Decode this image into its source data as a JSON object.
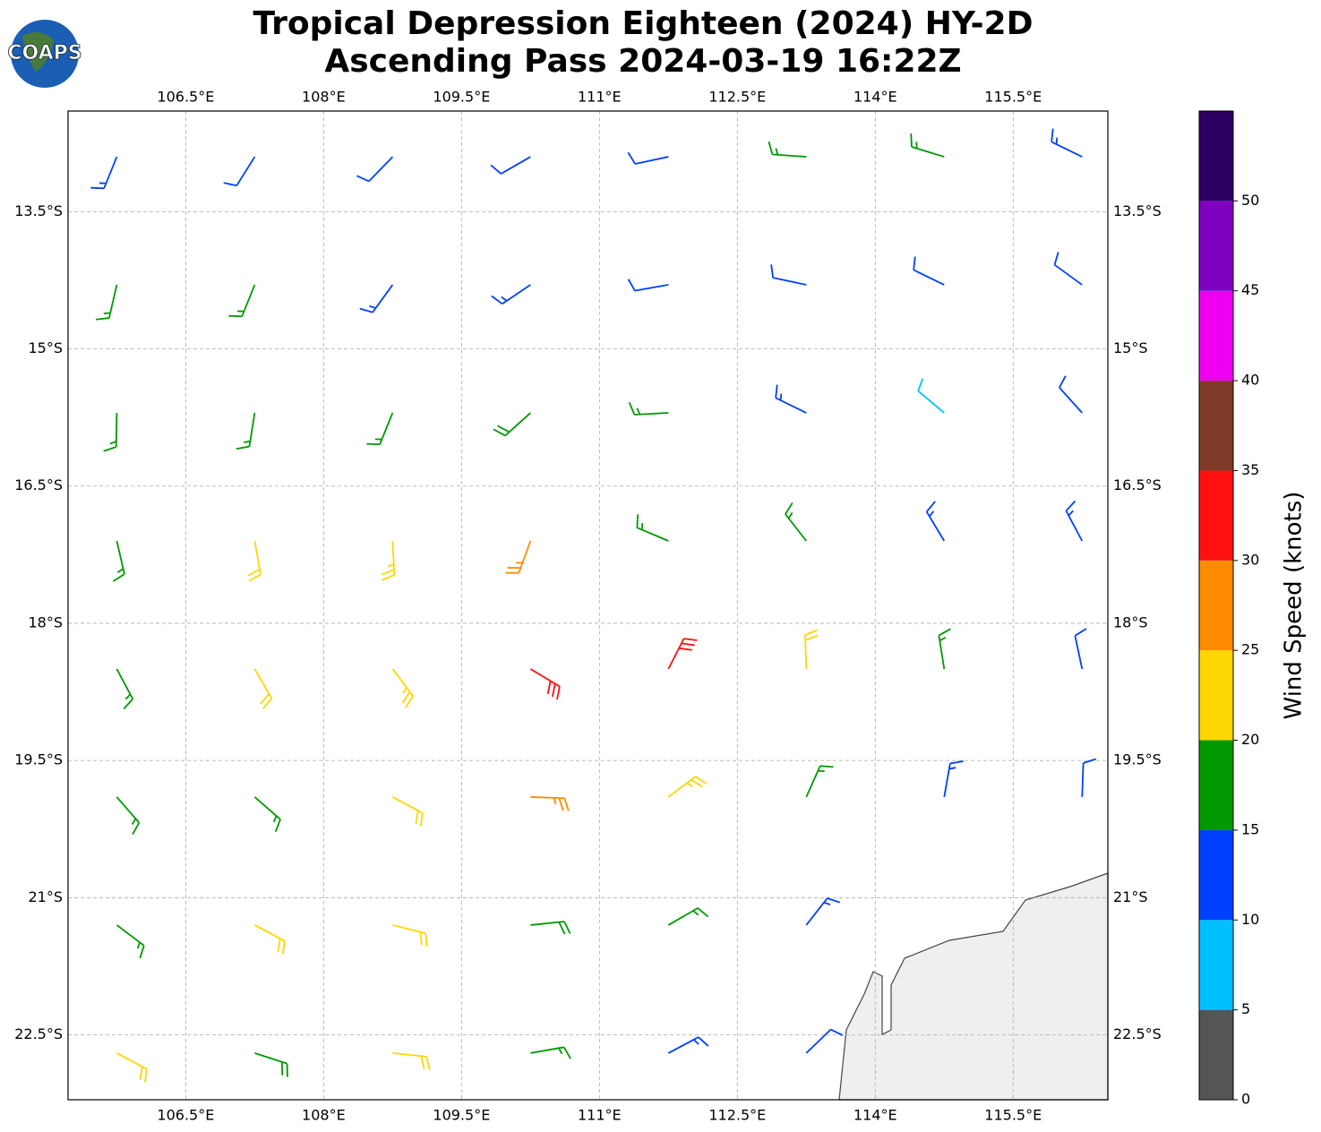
{
  "chart_data": {
    "type": "barbs",
    "title": "Tropical Depression Eighteen (2024) HY-2D",
    "subtitle": "Ascending Pass 2024-03-19 16:22Z",
    "logo": "COAPS",
    "xlim": [
      105.22,
      116.53
    ],
    "ylim": [
      -23.21,
      -12.4
    ],
    "xticks": [
      {
        "value": 106.5,
        "label": "106.5°E"
      },
      {
        "value": 108,
        "label": "108°E"
      },
      {
        "value": 109.5,
        "label": "109.5°E"
      },
      {
        "value": 111,
        "label": "111°E"
      },
      {
        "value": 112.5,
        "label": "112.5°E"
      },
      {
        "value": 114,
        "label": "114°E"
      },
      {
        "value": 115.5,
        "label": "115.5°E"
      }
    ],
    "yticks": [
      {
        "value": -13.5,
        "label": "13.5°S"
      },
      {
        "value": -15,
        "label": "15°S"
      },
      {
        "value": -16.5,
        "label": "16.5°S"
      },
      {
        "value": -18,
        "label": "18°S"
      },
      {
        "value": -19.5,
        "label": "19.5°S"
      },
      {
        "value": -21,
        "label": "21°S"
      },
      {
        "value": -22.5,
        "label": "22.5°S"
      }
    ],
    "grid": true,
    "colorbar": {
      "label": "Wind Speed (knots)",
      "bounds": [
        0,
        5,
        10,
        15,
        20,
        25,
        30,
        35,
        40,
        45,
        50,
        55
      ],
      "colors": [
        "#555555",
        "#00bfff",
        "#0040ff",
        "#009900",
        "#ffd700",
        "#ff8c00",
        "#ff1010",
        "#7f3b28",
        "#f000f0",
        "#8000c0",
        "#2a0060"
      ],
      "ticks": [
        0,
        5,
        10,
        15,
        20,
        25,
        30,
        35,
        40,
        45,
        50
      ]
    },
    "points": [
      {
        "lon": 105.75,
        "lat": -12.9,
        "speed": 13,
        "direction": 202
      },
      {
        "lon": 107.25,
        "lat": -12.9,
        "speed": 12,
        "direction": 212
      },
      {
        "lon": 108.75,
        "lat": -12.9,
        "speed": 12,
        "direction": 224
      },
      {
        "lon": 110.25,
        "lat": -12.9,
        "speed": 12,
        "direction": 240
      },
      {
        "lon": 111.75,
        "lat": -12.9,
        "speed": 11,
        "direction": 258
      },
      {
        "lon": 113.25,
        "lat": -12.9,
        "speed": 16,
        "direction": 274
      },
      {
        "lon": 114.75,
        "lat": -12.9,
        "speed": 16,
        "direction": 287
      },
      {
        "lon": 116.25,
        "lat": -12.9,
        "speed": 13,
        "direction": 296
      },
      {
        "lon": 105.75,
        "lat": -14.3,
        "speed": 17,
        "direction": 193
      },
      {
        "lon": 107.25,
        "lat": -14.3,
        "speed": 16,
        "direction": 202
      },
      {
        "lon": 108.75,
        "lat": -14.3,
        "speed": 13,
        "direction": 216
      },
      {
        "lon": 110.25,
        "lat": -14.3,
        "speed": 13,
        "direction": 236
      },
      {
        "lon": 111.75,
        "lat": -14.3,
        "speed": 12,
        "direction": 260
      },
      {
        "lon": 113.25,
        "lat": -14.3,
        "speed": 12,
        "direction": 282
      },
      {
        "lon": 114.75,
        "lat": -14.3,
        "speed": 12,
        "direction": 296
      },
      {
        "lon": 116.25,
        "lat": -14.3,
        "speed": 12,
        "direction": 306
      },
      {
        "lon": 105.75,
        "lat": -15.7,
        "speed": 17,
        "direction": 181
      },
      {
        "lon": 107.25,
        "lat": -15.7,
        "speed": 17,
        "direction": 189
      },
      {
        "lon": 108.75,
        "lat": -15.7,
        "speed": 17,
        "direction": 202
      },
      {
        "lon": 110.25,
        "lat": -15.7,
        "speed": 18,
        "direction": 228
      },
      {
        "lon": 111.75,
        "lat": -15.7,
        "speed": 17,
        "direction": 267
      },
      {
        "lon": 113.25,
        "lat": -15.7,
        "speed": 13,
        "direction": 296
      },
      {
        "lon": 114.75,
        "lat": -15.7,
        "speed": 8,
        "direction": 310
      },
      {
        "lon": 116.25,
        "lat": -15.7,
        "speed": 12,
        "direction": 318
      },
      {
        "lon": 105.75,
        "lat": -17.1,
        "speed": 17,
        "direction": 167
      },
      {
        "lon": 107.25,
        "lat": -17.1,
        "speed": 22,
        "direction": 170
      },
      {
        "lon": 108.75,
        "lat": -17.1,
        "speed": 23,
        "direction": 177
      },
      {
        "lon": 110.25,
        "lat": -17.1,
        "speed": 27,
        "direction": 200
      },
      {
        "lon": 111.75,
        "lat": -17.1,
        "speed": 16,
        "direction": 293
      },
      {
        "lon": 113.25,
        "lat": -17.1,
        "speed": 17,
        "direction": 322
      },
      {
        "lon": 114.75,
        "lat": -17.1,
        "speed": 14,
        "direction": 329
      },
      {
        "lon": 116.25,
        "lat": -17.1,
        "speed": 13,
        "direction": 332
      },
      {
        "lon": 105.75,
        "lat": -18.5,
        "speed": 16,
        "direction": 152
      },
      {
        "lon": 107.25,
        "lat": -18.5,
        "speed": 22,
        "direction": 150
      },
      {
        "lon": 108.75,
        "lat": -18.5,
        "speed": 24,
        "direction": 143
      },
      {
        "lon": 110.25,
        "lat": -18.5,
        "speed": 30,
        "direction": 121
      },
      {
        "lon": 111.75,
        "lat": -18.5,
        "speed": 32,
        "direction": 27
      },
      {
        "lon": 113.25,
        "lat": -18.5,
        "speed": 22,
        "direction": 358
      },
      {
        "lon": 114.75,
        "lat": -18.5,
        "speed": 17,
        "direction": 351
      },
      {
        "lon": 116.25,
        "lat": -18.5,
        "speed": 12,
        "direction": 348
      },
      {
        "lon": 105.75,
        "lat": -19.9,
        "speed": 17,
        "direction": 139
      },
      {
        "lon": 107.25,
        "lat": -19.9,
        "speed": 17,
        "direction": 131
      },
      {
        "lon": 108.75,
        "lat": -19.9,
        "speed": 22,
        "direction": 118
      },
      {
        "lon": 110.25,
        "lat": -19.9,
        "speed": 27,
        "direction": 92
      },
      {
        "lon": 111.75,
        "lat": -19.9,
        "speed": 24,
        "direction": 53
      },
      {
        "lon": 113.25,
        "lat": -19.9,
        "speed": 17,
        "direction": 24
      },
      {
        "lon": 114.75,
        "lat": -19.9,
        "speed": 13,
        "direction": 10
      },
      {
        "lon": 116.25,
        "lat": -19.9,
        "speed": 12,
        "direction": 2
      },
      {
        "lon": 105.75,
        "lat": -21.3,
        "speed": 17,
        "direction": 127
      },
      {
        "lon": 107.25,
        "lat": -21.3,
        "speed": 22,
        "direction": 118
      },
      {
        "lon": 108.75,
        "lat": -21.3,
        "speed": 22,
        "direction": 104
      },
      {
        "lon": 110.25,
        "lat": -21.3,
        "speed": 18,
        "direction": 84
      },
      {
        "lon": 111.75,
        "lat": -21.3,
        "speed": 17,
        "direction": 60
      },
      {
        "lon": 113.25,
        "lat": -21.3,
        "speed": 13,
        "direction": 38
      },
      {
        "lon": 105.75,
        "lat": -22.7,
        "speed": 22,
        "direction": 118
      },
      {
        "lon": 107.25,
        "lat": -22.7,
        "speed": 18,
        "direction": 108
      },
      {
        "lon": 108.75,
        "lat": -22.7,
        "speed": 22,
        "direction": 96
      },
      {
        "lon": 110.25,
        "lat": -22.7,
        "speed": 17,
        "direction": 80
      },
      {
        "lon": 111.75,
        "lat": -22.7,
        "speed": 13,
        "direction": 62
      },
      {
        "lon": 113.25,
        "lat": -22.7,
        "speed": 12,
        "direction": 46
      }
    ]
  }
}
